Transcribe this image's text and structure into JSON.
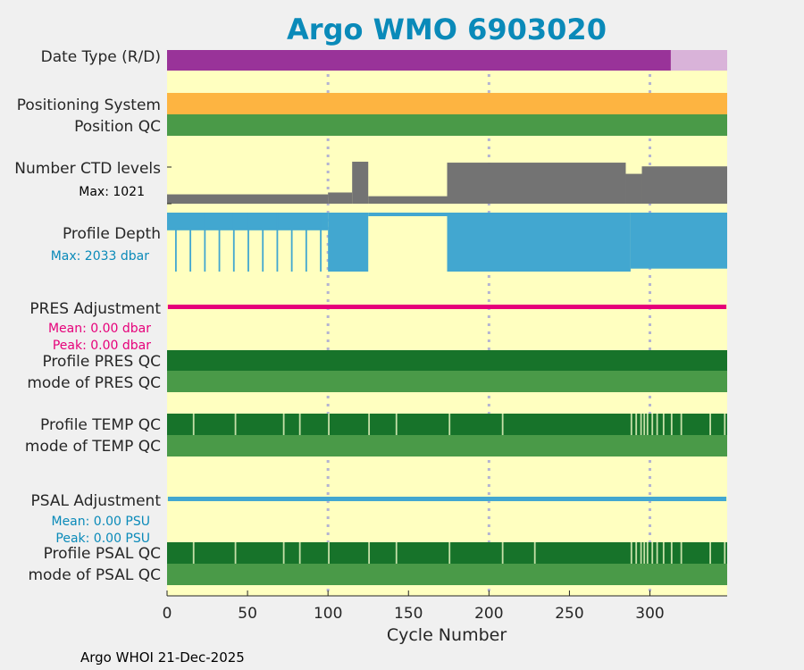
{
  "chart_data": {
    "type": "status-timeline",
    "title": "Argo WMO 6903020",
    "xlabel": "Cycle Number",
    "xlim": [
      0,
      348
    ],
    "xticks": [
      0,
      50,
      100,
      150,
      200,
      250,
      300
    ],
    "grid_x": [
      100,
      200,
      300
    ],
    "footer": "Argo WHOI 21-Dec-2025",
    "rows": {
      "date_type": {
        "label": "Date Type (R/D)",
        "delayed_until": 313,
        "colors": {
          "delayed": "#993399",
          "realtime": "#d9b3d9"
        }
      },
      "positioning": {
        "label": "Positioning System",
        "color": "#fdb441"
      },
      "position_qc": {
        "label": "Position QC",
        "color": "#4a9a48"
      },
      "ctd_levels": {
        "label": "Number CTD levels",
        "max_label": "Max: 1021",
        "max_value": 1021,
        "color": "#737373",
        "segments": [
          {
            "start": 0,
            "end": 100,
            "level": 100
          },
          {
            "start": 100,
            "end": 115,
            "level": 120
          },
          {
            "start": 115,
            "end": 125,
            "level": 450
          },
          {
            "start": 125,
            "end": 174,
            "level": 80
          },
          {
            "start": 174,
            "end": 285,
            "level": 440
          },
          {
            "start": 285,
            "end": 295,
            "level": 320
          },
          {
            "start": 295,
            "end": 348,
            "level": 400
          }
        ]
      },
      "profile_depth": {
        "label": "Profile Depth",
        "max_label": "Max: 2033 dbar",
        "max_value": 2033,
        "color": "#42a7d0",
        "segments": [
          {
            "start": 0,
            "end": 100,
            "depth": 300
          },
          {
            "start": 100,
            "end": 125,
            "depth": 1000
          },
          {
            "start": 125,
            "end": 174,
            "depth": 60
          },
          {
            "start": 174,
            "end": 288,
            "depth": 1000
          },
          {
            "start": 288,
            "end": 348,
            "depth": 950
          }
        ]
      },
      "pres_adjustment": {
        "label": "PRES Adjustment",
        "mean": "Mean: 0.00 dbar",
        "peak": "Peak: 0.00 dbar",
        "color": "#e6007a"
      },
      "profile_pres_qc": {
        "label": "Profile PRES QC",
        "color": "#17732a"
      },
      "mode_pres_qc": {
        "label": "mode of PRES QC",
        "color": "#4a9a48"
      },
      "profile_temp_qc": {
        "label": "Profile TEMP QC",
        "color": "#17732a",
        "gap_cycles": [
          16,
          42,
          72,
          82,
          100,
          125,
          142,
          175,
          208,
          288,
          291,
          294,
          296,
          298,
          301,
          304,
          308,
          313,
          319,
          337,
          346
        ]
      },
      "mode_temp_qc": {
        "label": "mode of TEMP QC",
        "color": "#4a9a48"
      },
      "psal_adjustment": {
        "label": "PSAL Adjustment",
        "mean": "Mean: 0.00 PSU",
        "peak": "Peak: 0.00 PSU",
        "color": "#42a7d0"
      },
      "profile_psal_qc": {
        "label": "Profile PSAL QC",
        "color": "#17732a",
        "gap_cycles": [
          16,
          42,
          72,
          82,
          100,
          125,
          142,
          175,
          208,
          228,
          288,
          291,
          294,
          296,
          298,
          301,
          304,
          308,
          313,
          319,
          337,
          346
        ]
      },
      "mode_psal_qc": {
        "label": "mode of PSAL QC",
        "color": "#4a9a48"
      }
    },
    "colors": {
      "background": "#ffffc0",
      "grid": "#b4b4d2",
      "title": "#0a8ab9",
      "gap": "#c6e0a8"
    }
  }
}
